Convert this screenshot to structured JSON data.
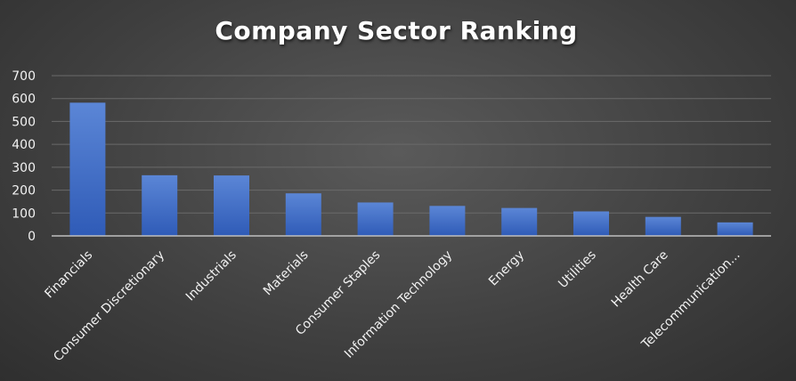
{
  "chart_data": {
    "type": "bar",
    "title": "Company Sector Ranking",
    "categories": [
      "Financials",
      "Consumer Discretionary",
      "Industrials",
      "Materials",
      "Consumer Staples",
      "Information Technology",
      "Energy",
      "Utilities",
      "Health Care",
      "Telecommunication..."
    ],
    "values": [
      582,
      265,
      264,
      186,
      146,
      131,
      122,
      107,
      83,
      59
    ],
    "ylim": [
      0,
      700
    ],
    "yticks": [
      "0",
      "100",
      "200",
      "300",
      "400",
      "500",
      "600",
      "700"
    ],
    "xlabel": "",
    "ylabel": "",
    "grid": true,
    "legend": "none",
    "colors": {
      "bar_top": "#5b86d6",
      "bar_bottom": "#2f5bb7",
      "grid": "#6a6a6a",
      "axis": "#bfbfbf"
    }
  }
}
